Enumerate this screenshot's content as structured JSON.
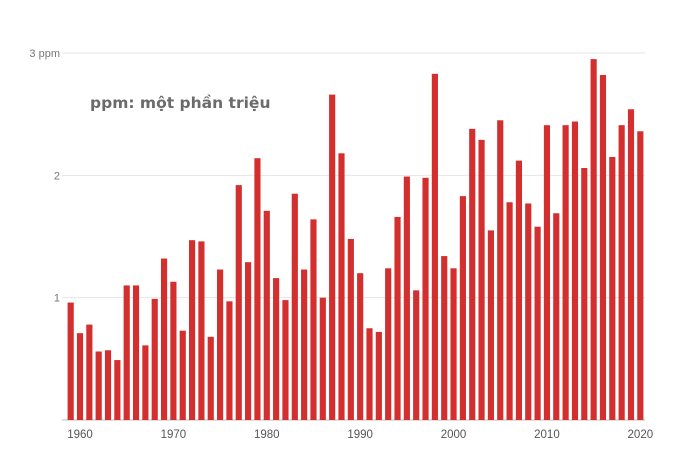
{
  "chart_data": {
    "type": "bar",
    "annotation": "ppm: một phần triệu",
    "bar_color": "#d32f2f",
    "grid": true,
    "ylim": [
      0,
      3
    ],
    "y_ticks": [
      {
        "value": 3,
        "label": "3 ppm"
      },
      {
        "value": 2,
        "label": "2"
      },
      {
        "value": 1,
        "label": "1"
      }
    ],
    "x_ticks": [
      1960,
      1970,
      1980,
      1990,
      2000,
      2010,
      2020
    ],
    "x": [
      1959,
      1960,
      1961,
      1962,
      1963,
      1964,
      1965,
      1966,
      1967,
      1968,
      1969,
      1970,
      1971,
      1972,
      1973,
      1974,
      1975,
      1976,
      1977,
      1978,
      1979,
      1980,
      1981,
      1982,
      1983,
      1984,
      1985,
      1986,
      1987,
      1988,
      1989,
      1990,
      1991,
      1992,
      1993,
      1994,
      1995,
      1996,
      1997,
      1998,
      1999,
      2000,
      2001,
      2002,
      2003,
      2004,
      2005,
      2006,
      2007,
      2008,
      2009,
      2010,
      2011,
      2012,
      2013,
      2014,
      2015,
      2016,
      2017,
      2018,
      2019,
      2020
    ],
    "values": [
      0.96,
      0.71,
      0.78,
      0.56,
      0.57,
      0.49,
      1.1,
      1.1,
      0.61,
      0.99,
      1.32,
      1.13,
      0.73,
      1.47,
      1.46,
      0.68,
      1.23,
      0.97,
      1.92,
      1.29,
      2.14,
      1.71,
      1.16,
      0.98,
      1.85,
      1.23,
      1.64,
      1.0,
      2.66,
      2.18,
      1.48,
      1.2,
      0.75,
      0.72,
      1.24,
      1.66,
      1.99,
      1.06,
      1.98,
      2.83,
      1.34,
      1.24,
      1.83,
      2.38,
      2.29,
      1.55,
      2.45,
      1.78,
      2.12,
      1.77,
      1.58,
      2.41,
      1.69,
      2.41,
      2.44,
      2.06,
      2.95,
      2.82,
      2.15,
      2.41,
      2.54,
      2.36
    ]
  }
}
